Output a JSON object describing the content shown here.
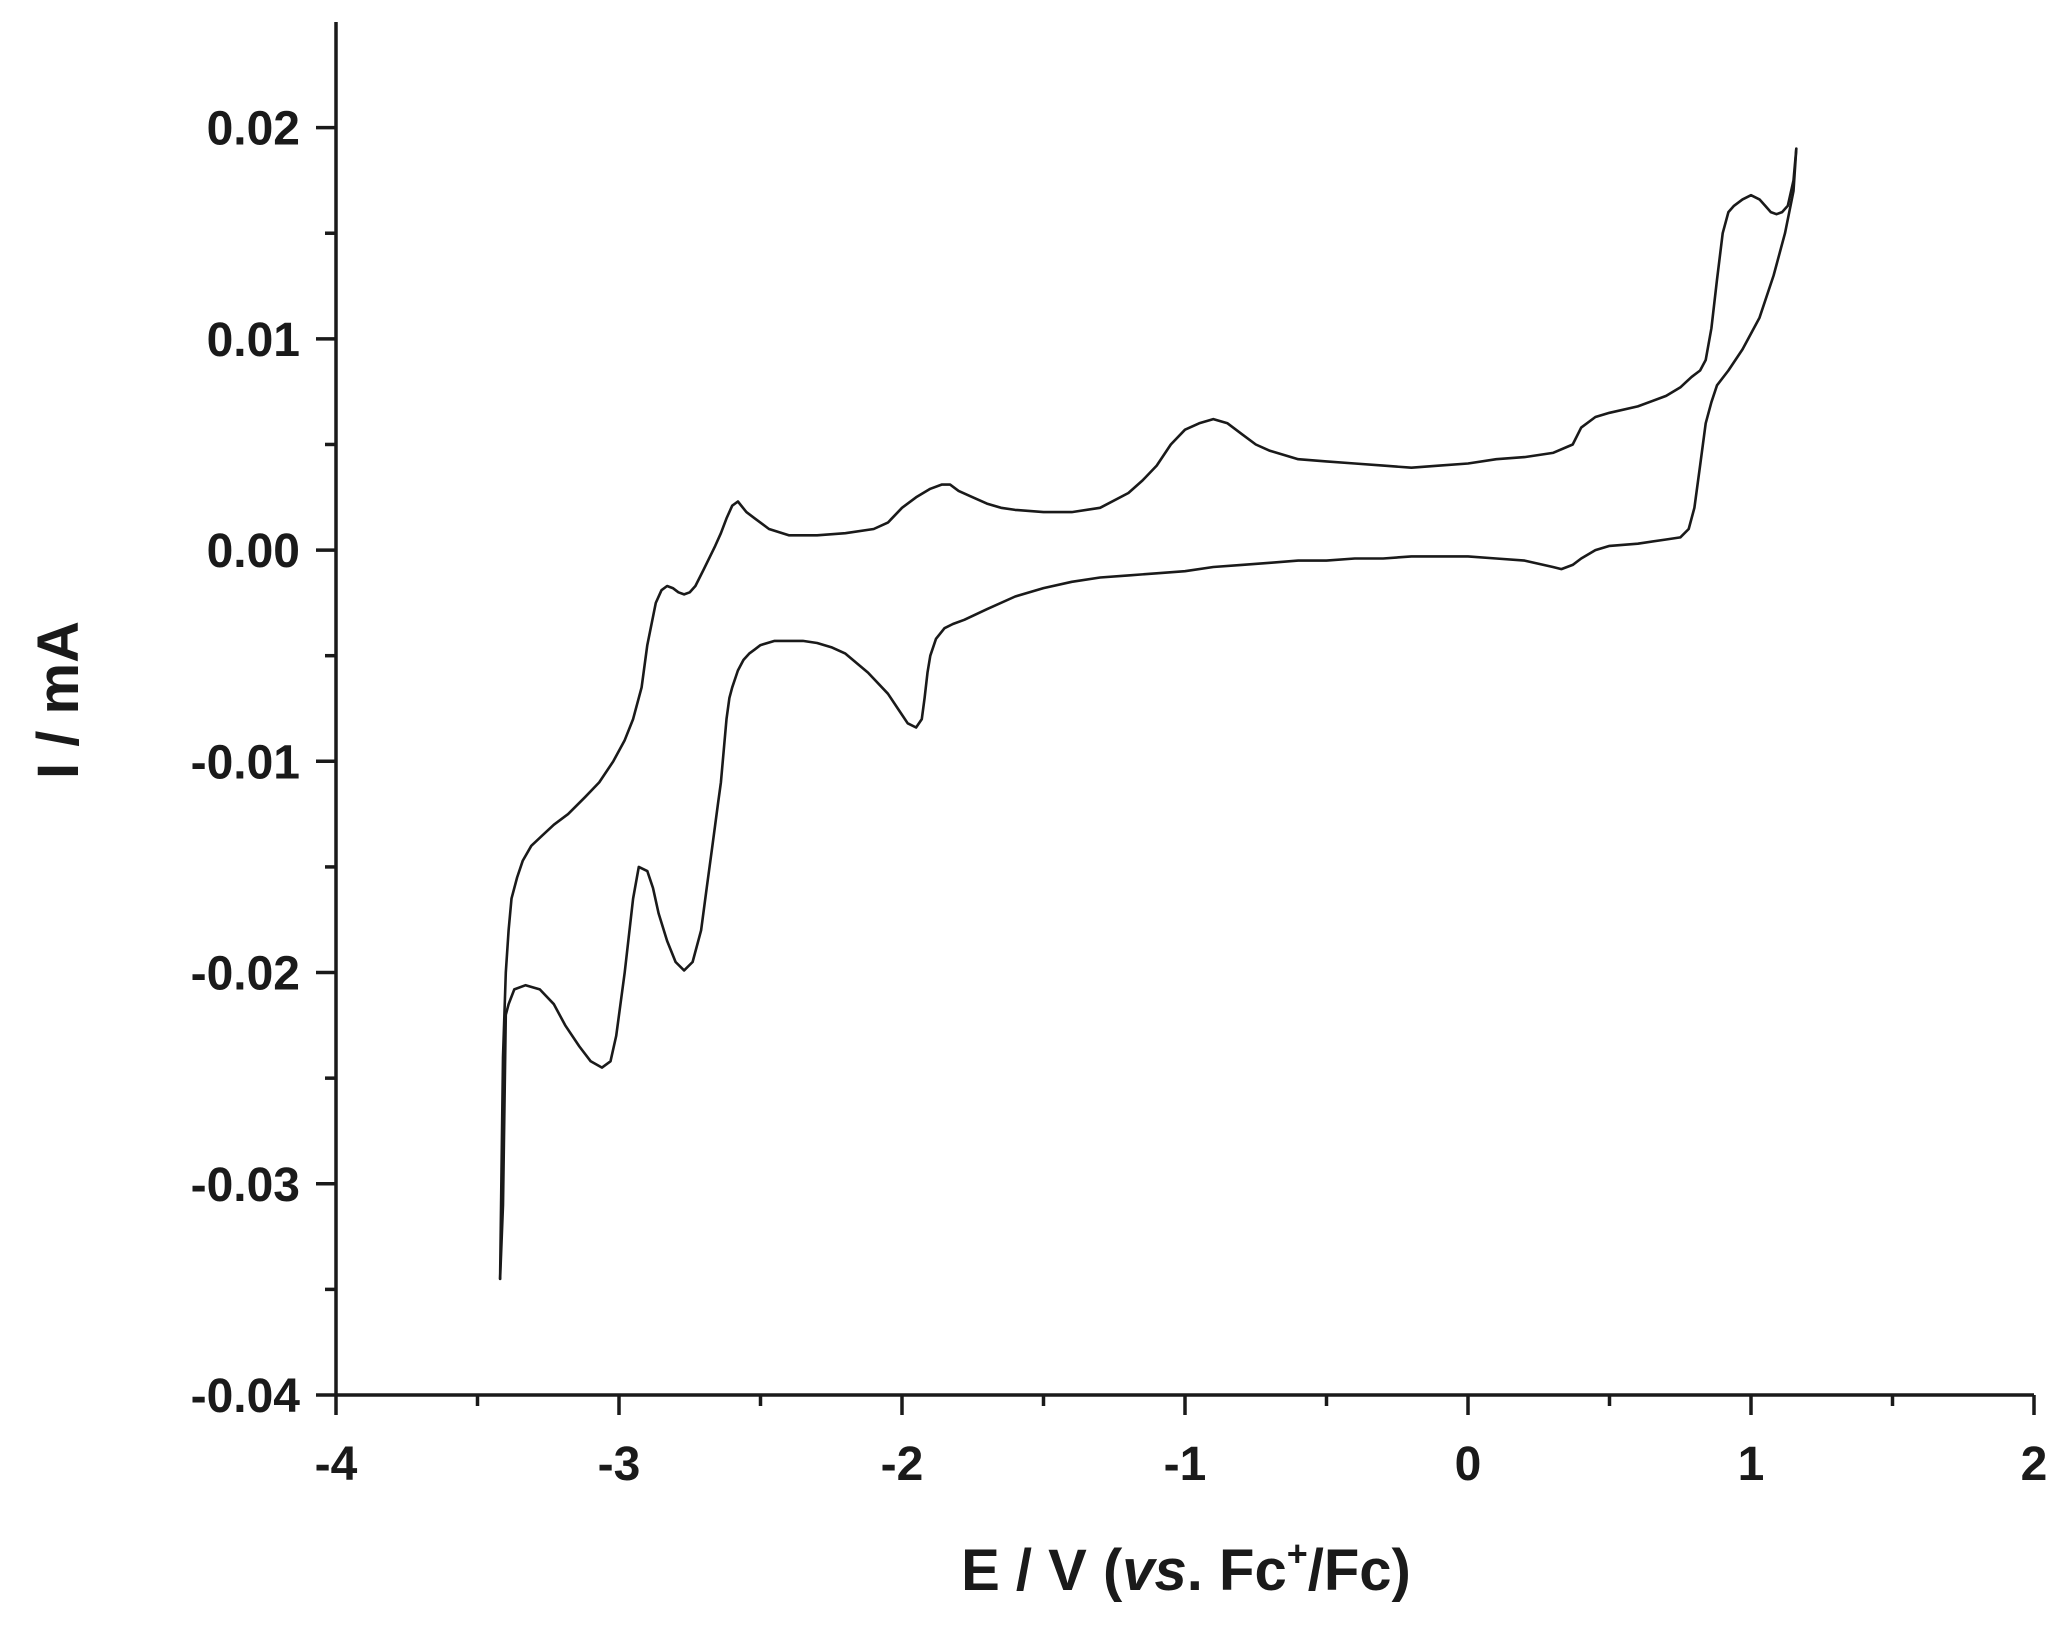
{
  "chart_data": {
    "type": "line",
    "title": "",
    "xlabel": {
      "prefix": "E / V (",
      "italic": "vs",
      "mid": ". Fc",
      "superscript": "+",
      "suffix": "/Fc)"
    },
    "ylabel": "I / mA",
    "xlim": [
      -4,
      2
    ],
    "ylim": [
      -0.04,
      0.025
    ],
    "x_ticks": [
      -4,
      -3,
      -2,
      -1,
      0,
      1,
      2
    ],
    "x_tick_labels": [
      "-4",
      "-3",
      "-2",
      "-1",
      "0",
      "1",
      "2"
    ],
    "y_ticks": [
      -0.04,
      -0.03,
      -0.02,
      -0.01,
      0.0,
      0.01,
      0.02
    ],
    "y_tick_labels": [
      "-0.04",
      "-0.03",
      "-0.02",
      "-0.01",
      "0.00",
      "0.01",
      "0.02"
    ],
    "grid": false,
    "series": [
      {
        "x": [
          -3.42,
          -3.41,
          -3.4,
          -3.39,
          -3.37,
          -3.33,
          -3.28,
          -3.23,
          -3.19,
          -3.14,
          -3.1,
          -3.06,
          -3.03,
          -3.01,
          -2.98,
          -2.95,
          -2.93,
          -2.9,
          -2.88,
          -2.86,
          -2.83,
          -2.8,
          -2.77,
          -2.74,
          -2.71,
          -2.69,
          -2.67,
          -2.66,
          -2.65,
          -2.64,
          -2.63,
          -2.62,
          -2.61,
          -2.6,
          -2.58,
          -2.56,
          -2.54,
          -2.52,
          -2.5,
          -2.45,
          -2.4,
          -2.35,
          -2.3,
          -2.25,
          -2.2,
          -2.12,
          -2.05,
          -2.01,
          -1.98,
          -1.95,
          -1.93,
          -1.92,
          -1.91,
          -1.9,
          -1.88,
          -1.85,
          -1.82,
          -1.78,
          -1.7,
          -1.6,
          -1.5,
          -1.4,
          -1.3,
          -1.2,
          -1.1,
          -1.0,
          -0.9,
          -0.8,
          -0.7,
          -0.6,
          -0.5,
          -0.4,
          -0.3,
          -0.2,
          -0.1,
          0.0,
          0.1,
          0.2,
          0.3,
          0.33,
          0.37,
          0.4,
          0.45,
          0.5,
          0.6,
          0.7,
          0.75,
          0.78,
          0.8,
          0.82,
          0.84,
          0.86,
          0.88,
          0.92,
          0.97,
          1.03,
          1.08,
          1.12,
          1.15,
          1.16
        ],
        "y": [
          -0.0345,
          -0.031,
          -0.022,
          -0.0215,
          -0.0208,
          -0.0206,
          -0.0208,
          -0.0215,
          -0.0225,
          -0.0235,
          -0.0242,
          -0.0245,
          -0.0242,
          -0.023,
          -0.02,
          -0.0165,
          -0.015,
          -0.0152,
          -0.016,
          -0.0172,
          -0.0185,
          -0.0195,
          -0.0199,
          -0.0195,
          -0.018,
          -0.016,
          -0.014,
          -0.013,
          -0.012,
          -0.011,
          -0.0095,
          -0.008,
          -0.007,
          -0.0065,
          -0.0057,
          -0.0052,
          -0.0049,
          -0.0047,
          -0.0045,
          -0.0043,
          -0.0043,
          -0.0043,
          -0.0044,
          -0.0046,
          -0.0049,
          -0.0058,
          -0.0068,
          -0.0076,
          -0.0082,
          -0.0084,
          -0.008,
          -0.007,
          -0.0058,
          -0.005,
          -0.0042,
          -0.0037,
          -0.0035,
          -0.0033,
          -0.0028,
          -0.0022,
          -0.0018,
          -0.0015,
          -0.0013,
          -0.0012,
          -0.0011,
          -0.001,
          -0.0008,
          -0.0007,
          -0.0006,
          -0.0005,
          -0.0005,
          -0.0004,
          -0.0004,
          -0.0003,
          -0.0003,
          -0.0003,
          -0.0004,
          -0.0005,
          -0.0008,
          -0.0009,
          -0.0007,
          -0.0004,
          0.0,
          0.0002,
          0.0003,
          0.0005,
          0.0006,
          0.001,
          0.002,
          0.004,
          0.006,
          0.007,
          0.0078,
          0.0085,
          0.0095,
          0.011,
          0.013,
          0.015,
          0.017,
          0.019
        ]
      },
      {
        "x": [
          1.16,
          1.15,
          1.13,
          1.11,
          1.09,
          1.07,
          1.05,
          1.03,
          1.0,
          0.97,
          0.94,
          0.92,
          0.9,
          0.88,
          0.86,
          0.84,
          0.82,
          0.79,
          0.75,
          0.7,
          0.6,
          0.5,
          0.45,
          0.4,
          0.37,
          0.3,
          0.2,
          0.1,
          0.0,
          -0.1,
          -0.2,
          -0.3,
          -0.4,
          -0.5,
          -0.6,
          -0.7,
          -0.75,
          -0.8,
          -0.85,
          -0.9,
          -0.95,
          -1.0,
          -1.05,
          -1.1,
          -1.15,
          -1.2,
          -1.3,
          -1.4,
          -1.5,
          -1.6,
          -1.65,
          -1.7,
          -1.75,
          -1.8,
          -1.83,
          -1.86,
          -1.9,
          -1.95,
          -2.0,
          -2.05,
          -2.1,
          -2.2,
          -2.3,
          -2.4,
          -2.47,
          -2.52,
          -2.55,
          -2.58,
          -2.6,
          -2.62,
          -2.64,
          -2.66,
          -2.7,
          -2.73,
          -2.75,
          -2.77,
          -2.79,
          -2.81,
          -2.83,
          -2.85,
          -2.87,
          -2.9,
          -2.92,
          -2.95,
          -2.98,
          -3.02,
          -3.07,
          -3.12,
          -3.18,
          -3.23,
          -3.27,
          -3.31,
          -3.34,
          -3.36,
          -3.38,
          -3.39,
          -3.4,
          -3.41,
          -3.42
        ],
        "y": [
          0.019,
          0.0175,
          0.0163,
          0.016,
          0.0159,
          0.016,
          0.0163,
          0.0166,
          0.0168,
          0.0166,
          0.0163,
          0.016,
          0.015,
          0.0128,
          0.0105,
          0.009,
          0.0085,
          0.0082,
          0.0077,
          0.0073,
          0.0068,
          0.0065,
          0.0063,
          0.0058,
          0.005,
          0.0046,
          0.0044,
          0.0043,
          0.0041,
          0.004,
          0.0039,
          0.004,
          0.0041,
          0.0042,
          0.0043,
          0.0047,
          0.005,
          0.0055,
          0.006,
          0.0062,
          0.006,
          0.0057,
          0.005,
          0.004,
          0.0033,
          0.0027,
          0.002,
          0.0018,
          0.0018,
          0.0019,
          0.002,
          0.0022,
          0.0025,
          0.0028,
          0.0031,
          0.0031,
          0.0029,
          0.0025,
          0.002,
          0.0013,
          0.001,
          0.0008,
          0.0007,
          0.0007,
          0.001,
          0.0015,
          0.0018,
          0.0023,
          0.0021,
          0.0015,
          0.0008,
          0.0002,
          -0.0009,
          -0.0017,
          -0.002,
          -0.0021,
          -0.002,
          -0.0018,
          -0.0017,
          -0.0019,
          -0.0025,
          -0.0045,
          -0.0065,
          -0.008,
          -0.009,
          -0.01,
          -0.011,
          -0.0117,
          -0.0125,
          -0.013,
          -0.0135,
          -0.014,
          -0.0147,
          -0.0155,
          -0.0165,
          -0.018,
          -0.02,
          -0.024,
          -0.0345
        ]
      }
    ]
  }
}
